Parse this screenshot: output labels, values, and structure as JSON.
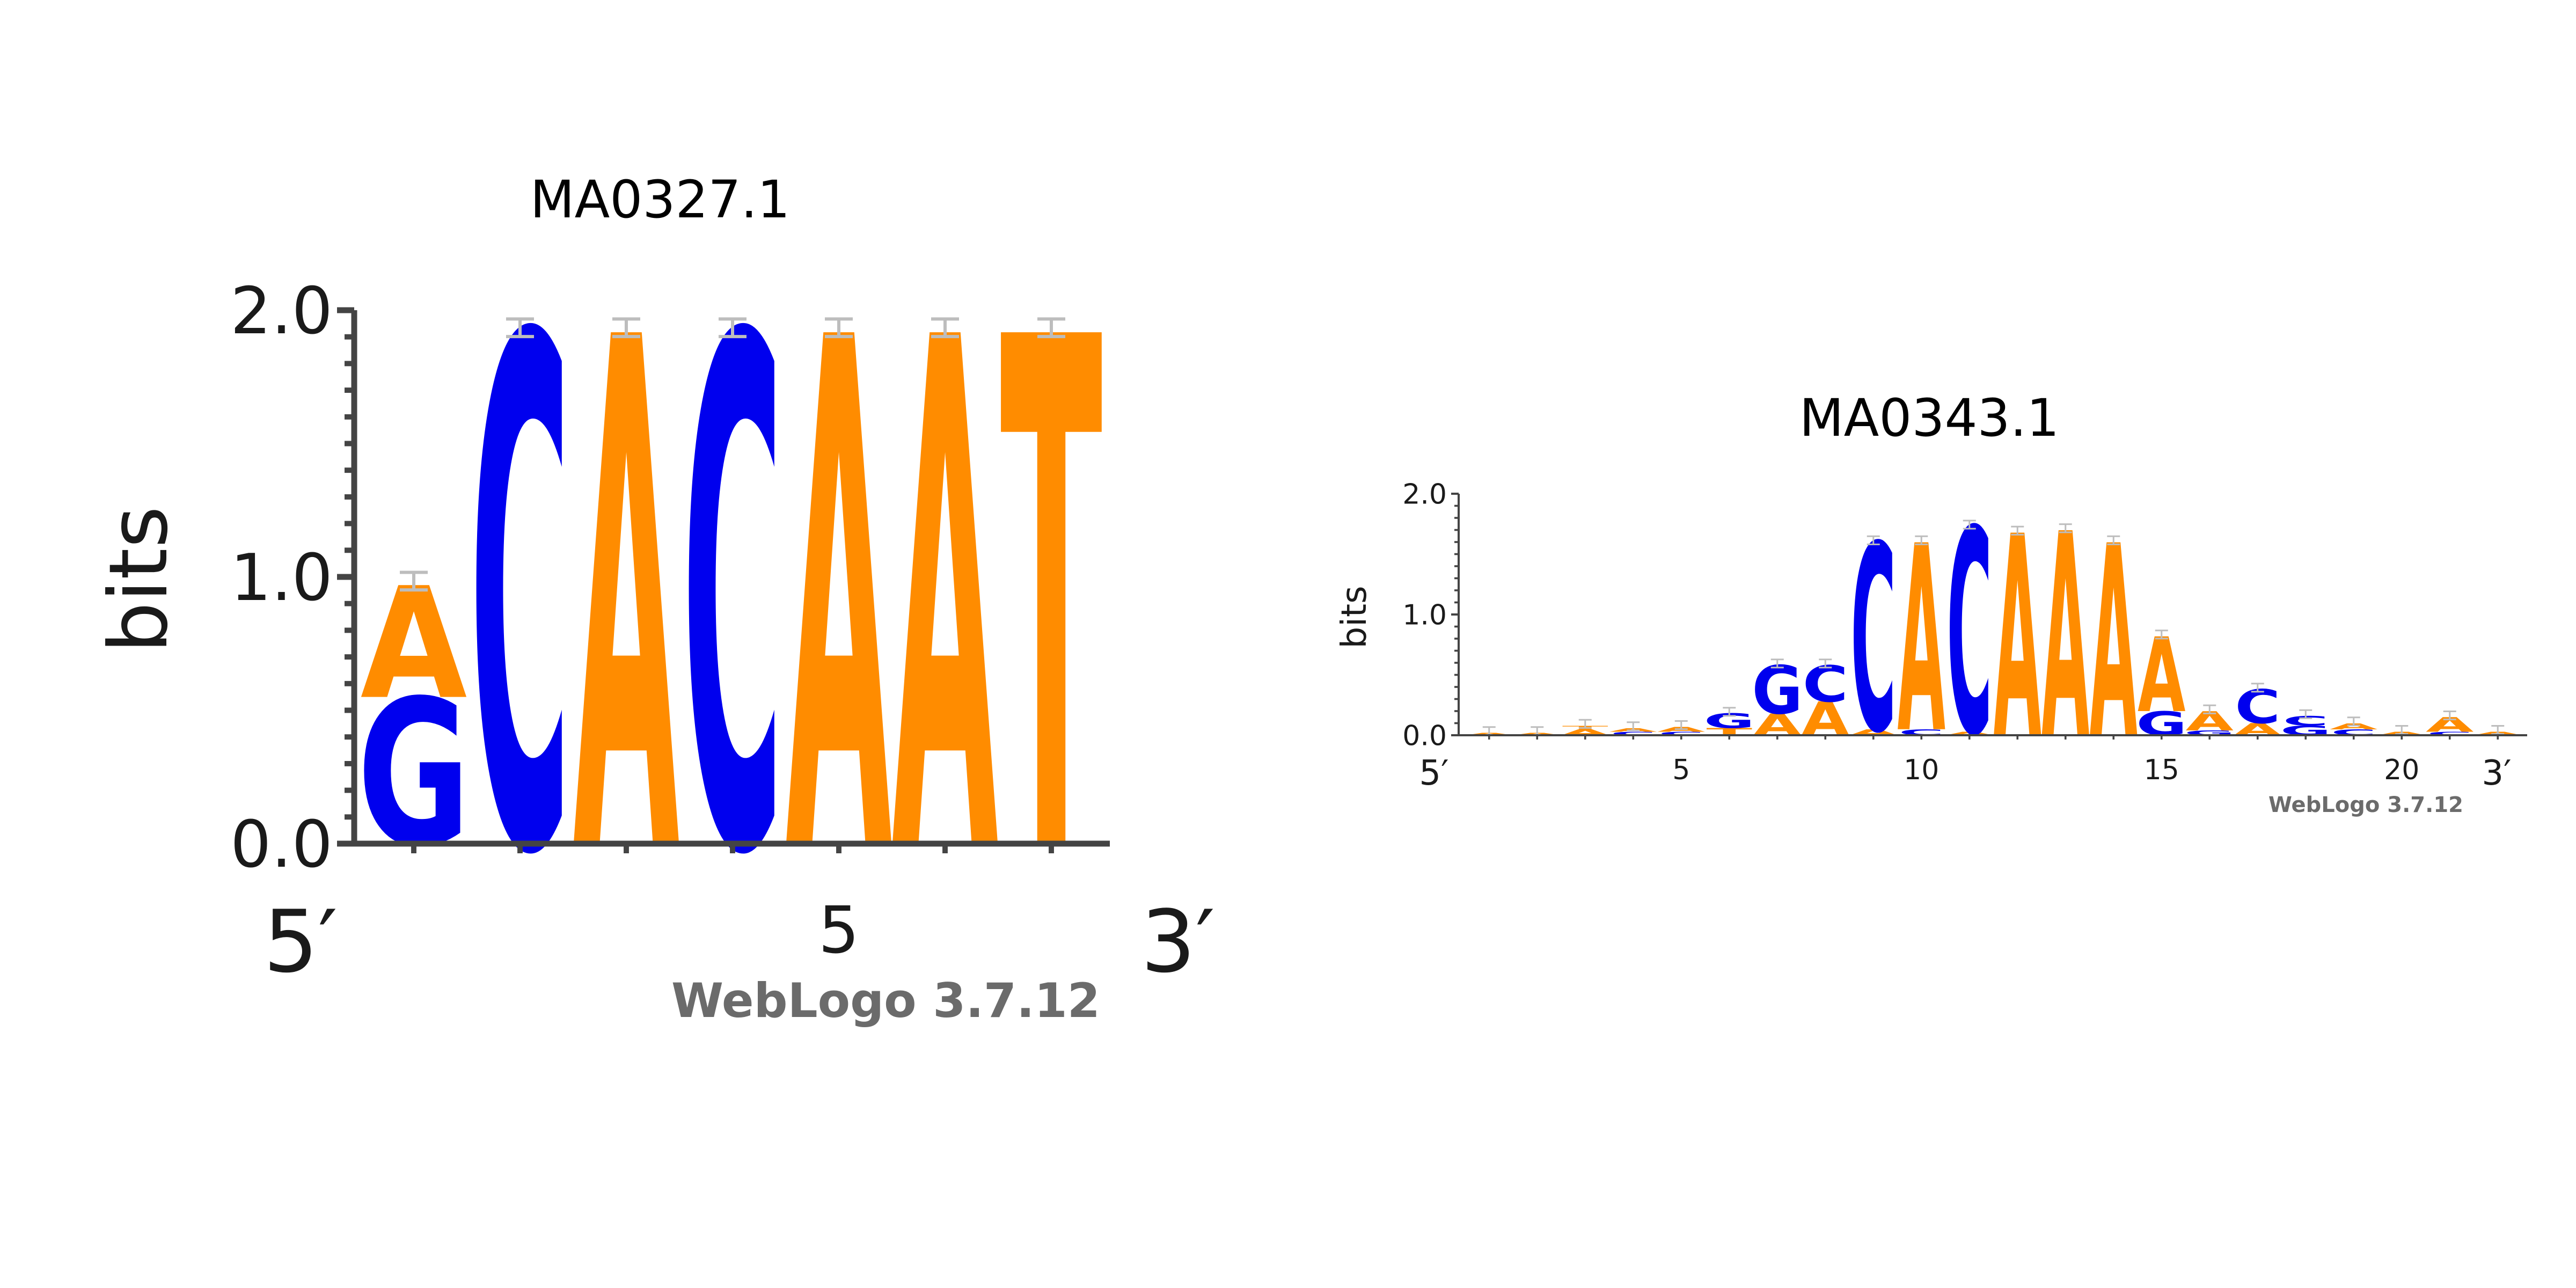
{
  "chart_data": [
    {
      "type": "sequence-logo",
      "title": "MA0327.1",
      "ylabel": "bits",
      "ylim": [
        0,
        2
      ],
      "y_ticks": [
        "0.0",
        "1.0",
        "2.0"
      ],
      "x_ticks": [
        5
      ],
      "five_prime_label": "5′",
      "three_prime_label": "3′",
      "credit": "WebLogo 3.7.12",
      "positions": [
        [
          {
            "base": "G",
            "height": 0.55
          },
          {
            "base": "A",
            "height": 0.42
          }
        ],
        [
          {
            "base": "C",
            "height": 1.92
          }
        ],
        [
          {
            "base": "A",
            "height": 1.92
          }
        ],
        [
          {
            "base": "C",
            "height": 1.92
          }
        ],
        [
          {
            "base": "A",
            "height": 1.92
          }
        ],
        [
          {
            "base": "A",
            "height": 1.92
          }
        ],
        [
          {
            "base": "T",
            "height": 1.92
          }
        ]
      ]
    },
    {
      "type": "sequence-logo",
      "title": "MA0343.1",
      "ylabel": "bits",
      "ylim": [
        0,
        2
      ],
      "y_ticks": [
        "0.0",
        "1.0",
        "2.0"
      ],
      "x_ticks": [
        5,
        10,
        15,
        20
      ],
      "five_prime_label": "5′",
      "three_prime_label": "3′",
      "credit": "WebLogo 3.7.12",
      "positions": [
        [
          {
            "base": "A",
            "height": 0.02
          }
        ],
        [
          {
            "base": "A",
            "height": 0.02
          }
        ],
        [
          {
            "base": "A",
            "height": 0.05
          },
          {
            "base": "T",
            "height": 0.03
          }
        ],
        [
          {
            "base": "C",
            "height": 0.03
          },
          {
            "base": "A",
            "height": 0.03
          }
        ],
        [
          {
            "base": "C",
            "height": 0.03
          },
          {
            "base": "A",
            "height": 0.04
          }
        ],
        [
          {
            "base": "T",
            "height": 0.06
          },
          {
            "base": "G",
            "height": 0.12
          }
        ],
        [
          {
            "base": "A",
            "height": 0.18
          },
          {
            "base": "G",
            "height": 0.4
          }
        ],
        [
          {
            "base": "A",
            "height": 0.28
          },
          {
            "base": "C",
            "height": 0.3
          }
        ],
        [
          {
            "base": "A",
            "height": 0.05
          },
          {
            "base": "C",
            "height": 1.55
          }
        ],
        [
          {
            "base": "C",
            "height": 0.05
          },
          {
            "base": "A",
            "height": 1.55
          }
        ],
        [
          {
            "base": "A",
            "height": 0.03
          },
          {
            "base": "C",
            "height": 1.7
          }
        ],
        [
          {
            "base": "A",
            "height": 1.68
          }
        ],
        [
          {
            "base": "A",
            "height": 1.7
          }
        ],
        [
          {
            "base": "A",
            "height": 1.6
          }
        ],
        [
          {
            "base": "G",
            "height": 0.2
          },
          {
            "base": "A",
            "height": 0.62
          }
        ],
        [
          {
            "base": "G",
            "height": 0.04
          },
          {
            "base": "A",
            "height": 0.16
          }
        ],
        [
          {
            "base": "A",
            "height": 0.1
          },
          {
            "base": "C",
            "height": 0.28
          }
        ],
        [
          {
            "base": "G",
            "height": 0.08
          },
          {
            "base": "C",
            "height": 0.08
          }
        ],
        [
          {
            "base": "C",
            "height": 0.05
          },
          {
            "base": "A",
            "height": 0.05
          }
        ],
        [
          {
            "base": "A",
            "height": 0.03
          }
        ],
        [
          {
            "base": "C",
            "height": 0.03
          },
          {
            "base": "A",
            "height": 0.12
          }
        ],
        [
          {
            "base": "A",
            "height": 0.03
          }
        ]
      ]
    }
  ],
  "colors": {
    "A": "#ff8c00",
    "C": "#0000ee",
    "G": "#0000ee",
    "T": "#ff8c00"
  }
}
